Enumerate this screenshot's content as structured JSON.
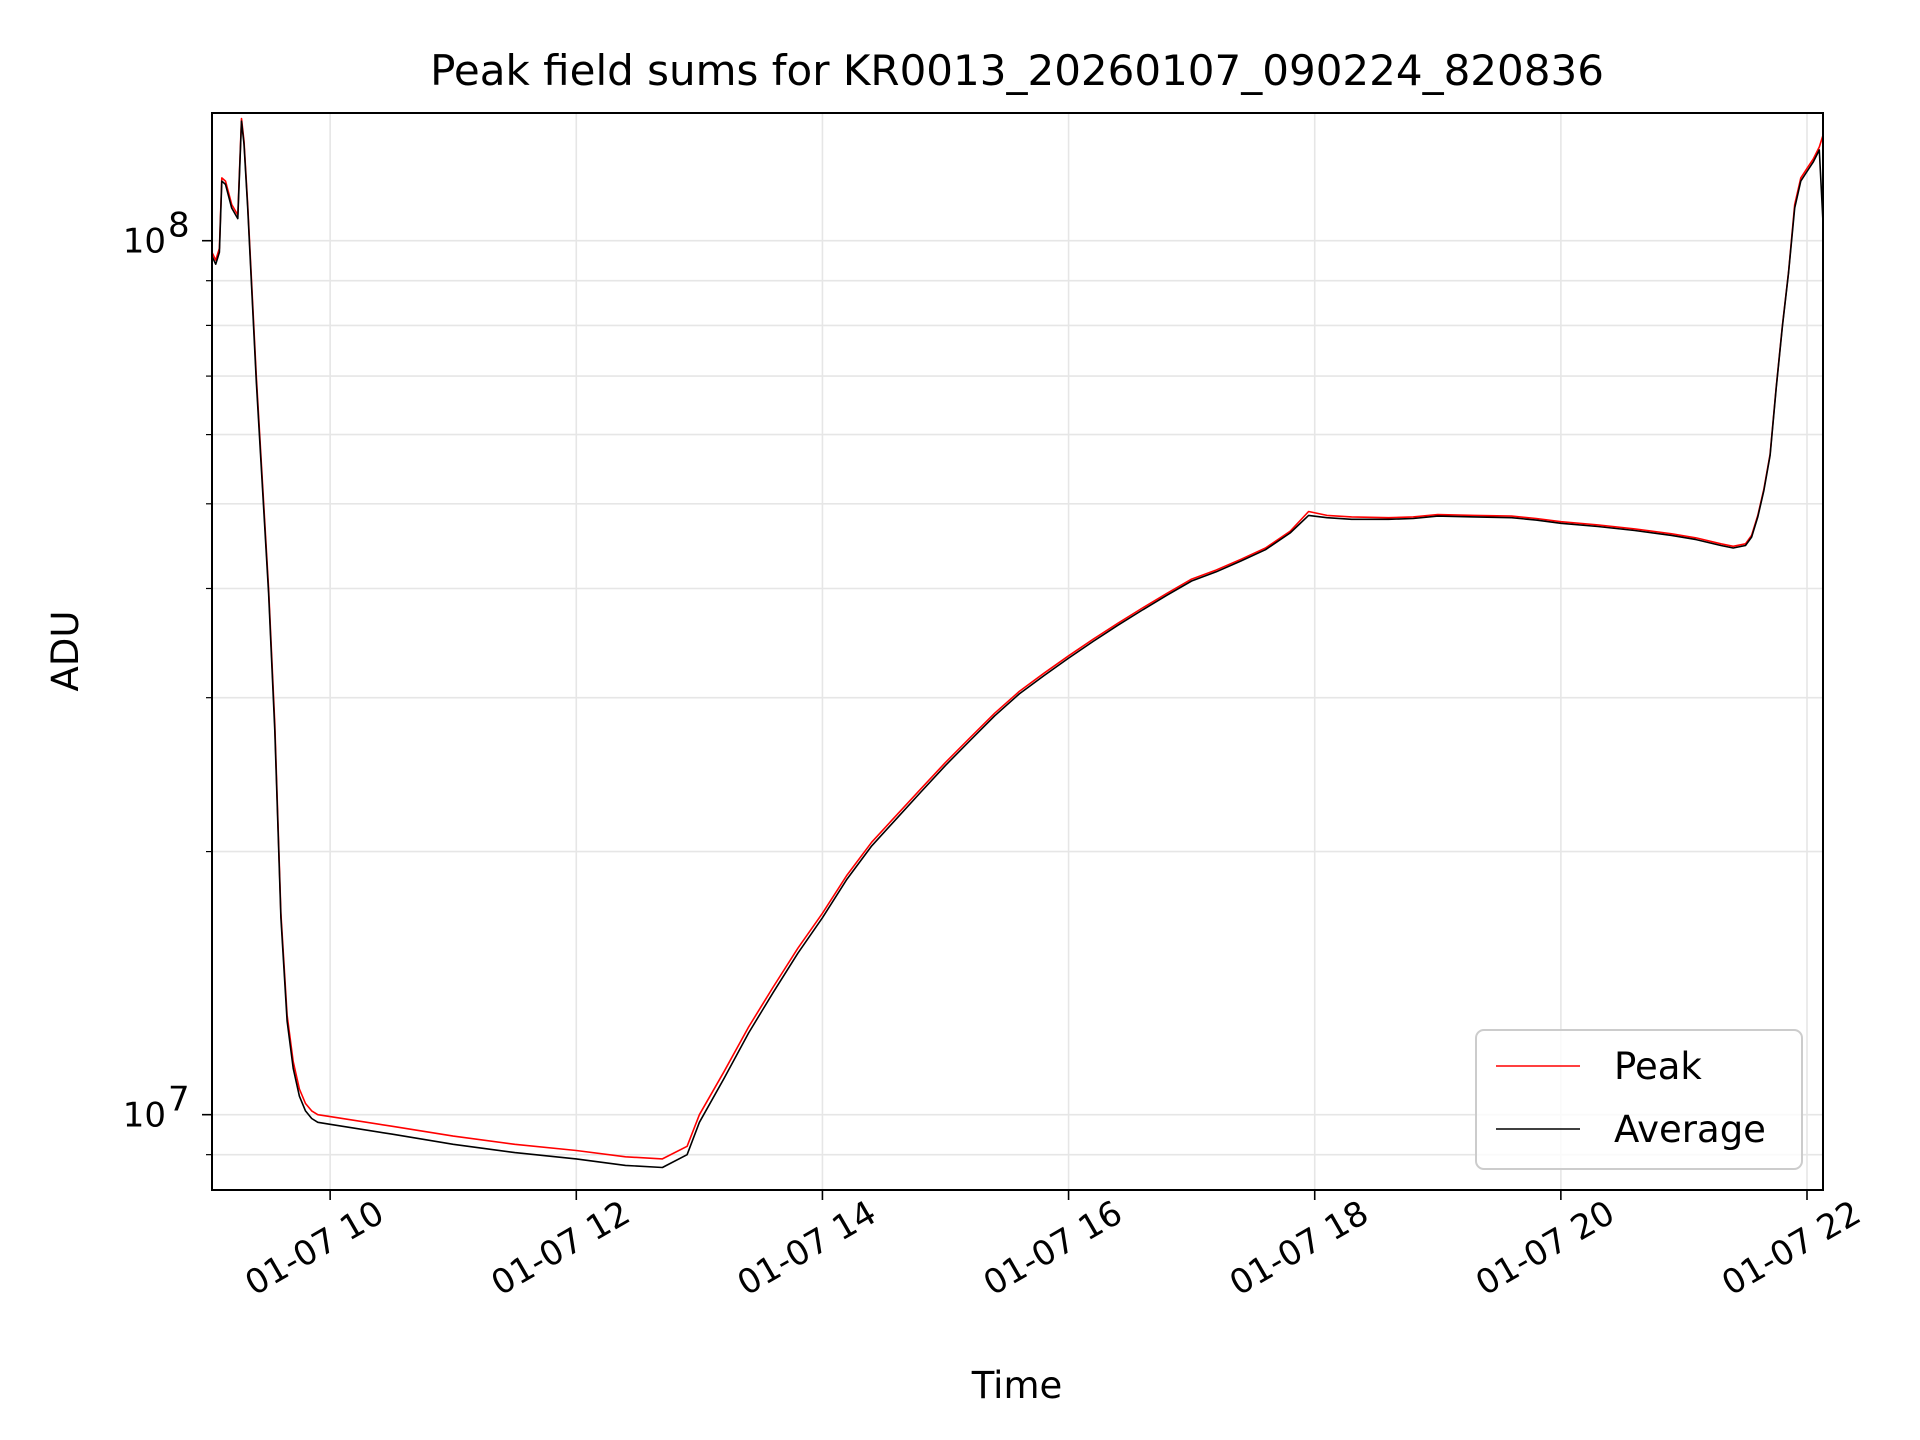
{
  "chart_data": {
    "type": "line",
    "title": "Peak field sums for KR0013_20260107_090224_820836",
    "xlabel": "Time",
    "ylabel": "ADU",
    "yscale": "log",
    "xlim_hours": [
      9.04,
      22.13
    ],
    "ylim": [
      8200000,
      140000000
    ],
    "grid": true,
    "legend_position": "lower-right",
    "x_ticks": [
      {
        "value": 10,
        "label": "01-07 10"
      },
      {
        "value": 12,
        "label": "01-07 12"
      },
      {
        "value": 14,
        "label": "01-07 14"
      },
      {
        "value": 16,
        "label": "01-07 16"
      },
      {
        "value": 18,
        "label": "01-07 18"
      },
      {
        "value": 20,
        "label": "01-07 20"
      },
      {
        "value": 22,
        "label": "01-07 22"
      }
    ],
    "y_major_ticks": [
      {
        "value": 10000000,
        "base": "10",
        "exp": "7"
      },
      {
        "value": 100000000,
        "base": "10",
        "exp": "8"
      }
    ],
    "y_minor_ticks": [
      9000000,
      20000000,
      30000000,
      40000000,
      50000000,
      60000000,
      70000000,
      80000000,
      90000000
    ],
    "series": [
      {
        "name": "Peak",
        "color": "#ff0000",
        "x_hours": [
          9.04,
          9.07,
          9.1,
          9.12,
          9.15,
          9.2,
          9.25,
          9.28,
          9.3,
          9.33,
          9.4,
          9.5,
          9.55,
          9.6,
          9.65,
          9.7,
          9.75,
          9.8,
          9.85,
          9.9,
          10.0,
          10.5,
          11.0,
          11.5,
          12.0,
          12.4,
          12.7,
          12.9,
          13.0,
          13.2,
          13.4,
          13.6,
          13.8,
          14.0,
          14.2,
          14.4,
          14.6,
          14.8,
          15.0,
          15.2,
          15.4,
          15.6,
          15.8,
          16.0,
          16.2,
          16.4,
          16.6,
          16.8,
          17.0,
          17.2,
          17.4,
          17.6,
          17.8,
          17.95,
          18.1,
          18.3,
          18.6,
          18.8,
          19.0,
          19.3,
          19.6,
          19.8,
          20.0,
          20.3,
          20.6,
          20.9,
          21.1,
          21.3,
          21.4,
          21.5,
          21.55,
          21.6,
          21.65,
          21.7,
          21.75,
          21.8,
          21.85,
          21.9,
          21.95,
          22.0,
          22.05,
          22.1,
          22.13
        ],
        "values": [
          97000000,
          95000000,
          98000000,
          118000000,
          117000000,
          110000000,
          107000000,
          138000000,
          130000000,
          110000000,
          70000000,
          40000000,
          28000000,
          17000000,
          13000000,
          11500000,
          10700000,
          10300000,
          10100000,
          10000000,
          9950000,
          9700000,
          9450000,
          9250000,
          9100000,
          8950000,
          8900000,
          9200000,
          10000000,
          11200000,
          12600000,
          14000000,
          15500000,
          17000000,
          18800000,
          20500000,
          22000000,
          23600000,
          25300000,
          27000000,
          28800000,
          30500000,
          32000000,
          33500000,
          35000000,
          36500000,
          38000000,
          39500000,
          41000000,
          42000000,
          43200000,
          44500000,
          46500000,
          49000000,
          48500000,
          48300000,
          48200000,
          48300000,
          48600000,
          48500000,
          48400000,
          48100000,
          47700000,
          47300000,
          46800000,
          46200000,
          45700000,
          45000000,
          44700000,
          45000000,
          46000000,
          48500000,
          52000000,
          57000000,
          68000000,
          80000000,
          92000000,
          110000000,
          118000000,
          121000000,
          124000000,
          128000000,
          132000000
        ]
      },
      {
        "name": "Average",
        "color": "#000000",
        "x_hours": [
          9.04,
          9.07,
          9.1,
          9.12,
          9.15,
          9.2,
          9.25,
          9.28,
          9.3,
          9.33,
          9.4,
          9.5,
          9.55,
          9.6,
          9.65,
          9.7,
          9.75,
          9.8,
          9.85,
          9.9,
          10.0,
          10.5,
          11.0,
          11.5,
          12.0,
          12.4,
          12.7,
          12.9,
          13.0,
          13.2,
          13.4,
          13.6,
          13.8,
          14.0,
          14.2,
          14.4,
          14.6,
          14.8,
          15.0,
          15.2,
          15.4,
          15.6,
          15.8,
          16.0,
          16.2,
          16.4,
          16.6,
          16.8,
          17.0,
          17.2,
          17.4,
          17.6,
          17.8,
          17.95,
          18.1,
          18.3,
          18.6,
          18.8,
          19.0,
          19.3,
          19.6,
          19.8,
          20.0,
          20.3,
          20.6,
          20.9,
          21.1,
          21.3,
          21.4,
          21.5,
          21.55,
          21.6,
          21.65,
          21.7,
          21.75,
          21.8,
          21.85,
          21.9,
          21.95,
          22.0,
          22.05,
          22.1,
          22.13
        ],
        "values": [
          96000000,
          94000000,
          97000000,
          117000000,
          116000000,
          109000000,
          106000000,
          137000000,
          129000000,
          109000000,
          69000000,
          39500000,
          27500000,
          16800000,
          12800000,
          11300000,
          10500000,
          10100000,
          9900000,
          9800000,
          9750000,
          9500000,
          9250000,
          9050000,
          8900000,
          8750000,
          8700000,
          9000000,
          9800000,
          11000000,
          12400000,
          13800000,
          15300000,
          16800000,
          18600000,
          20300000,
          21800000,
          23400000,
          25100000,
          26800000,
          28600000,
          30300000,
          31800000,
          33300000,
          34800000,
          36300000,
          37800000,
          39300000,
          40800000,
          41800000,
          43000000,
          44300000,
          46300000,
          48500000,
          48200000,
          48000000,
          48000000,
          48100000,
          48400000,
          48300000,
          48200000,
          47900000,
          47500000,
          47100000,
          46600000,
          46000000,
          45500000,
          44800000,
          44500000,
          44800000,
          45800000,
          48300000,
          51800000,
          56800000,
          67800000,
          79800000,
          91800000,
          109000000,
          117000000,
          120000000,
          123000000,
          127000000,
          105000000
        ]
      }
    ]
  }
}
